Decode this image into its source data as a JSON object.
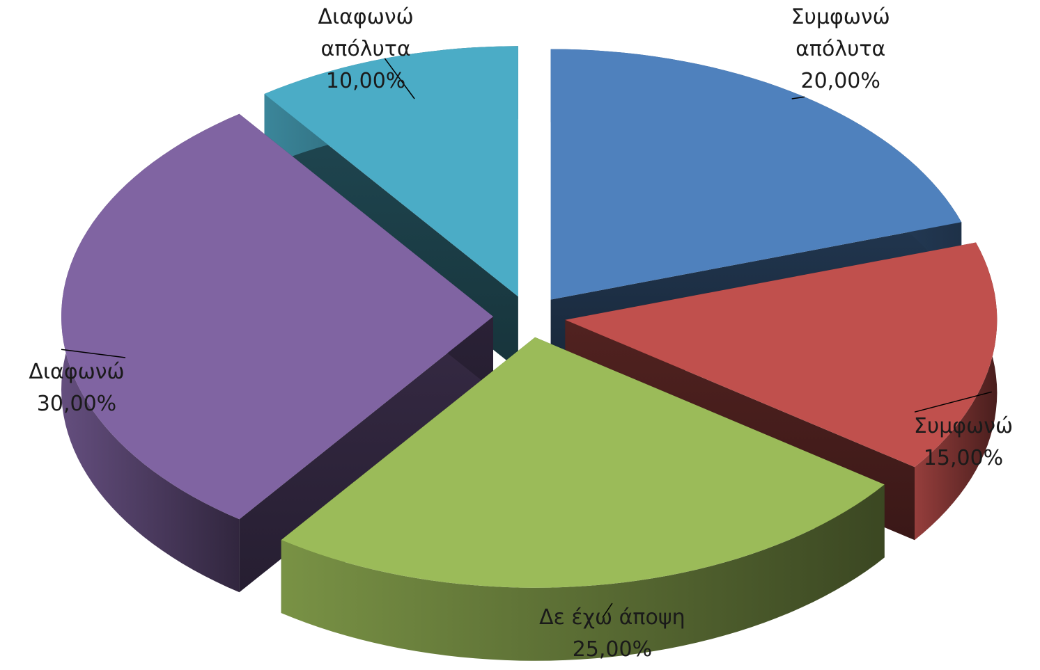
{
  "chart_data": {
    "type": "pie",
    "style": "3d-exploded",
    "start_angle_deg": 0,
    "direction": "clockwise",
    "slices": [
      {
        "category": "Συμφωνώ απόλυτα",
        "value": 20.0,
        "label_lines": [
          "Συμφωνώ",
          "απόλυτα",
          "20,00%"
        ],
        "color": "#4F81BD"
      },
      {
        "category": "Συμφωνώ",
        "value": 15.0,
        "label_lines": [
          "Συμφωνώ",
          "15,00%"
        ],
        "color": "#C0504D"
      },
      {
        "category": "Δε έχω άποψη",
        "value": 25.0,
        "label_lines": [
          "Δε έχω άποψη",
          "25,00%"
        ],
        "color": "#9BBB59"
      },
      {
        "category": "Διαφωνώ",
        "value": 30.0,
        "label_lines": [
          "Διαφωνώ",
          "30,00%"
        ],
        "color": "#8064A2"
      },
      {
        "category": "Διαφωνώ απόλυτα",
        "value": 10.0,
        "label_lines": [
          "Διαφωνώ",
          "απόλυτα",
          "10,00%"
        ],
        "color": "#4BACC6"
      }
    ]
  }
}
